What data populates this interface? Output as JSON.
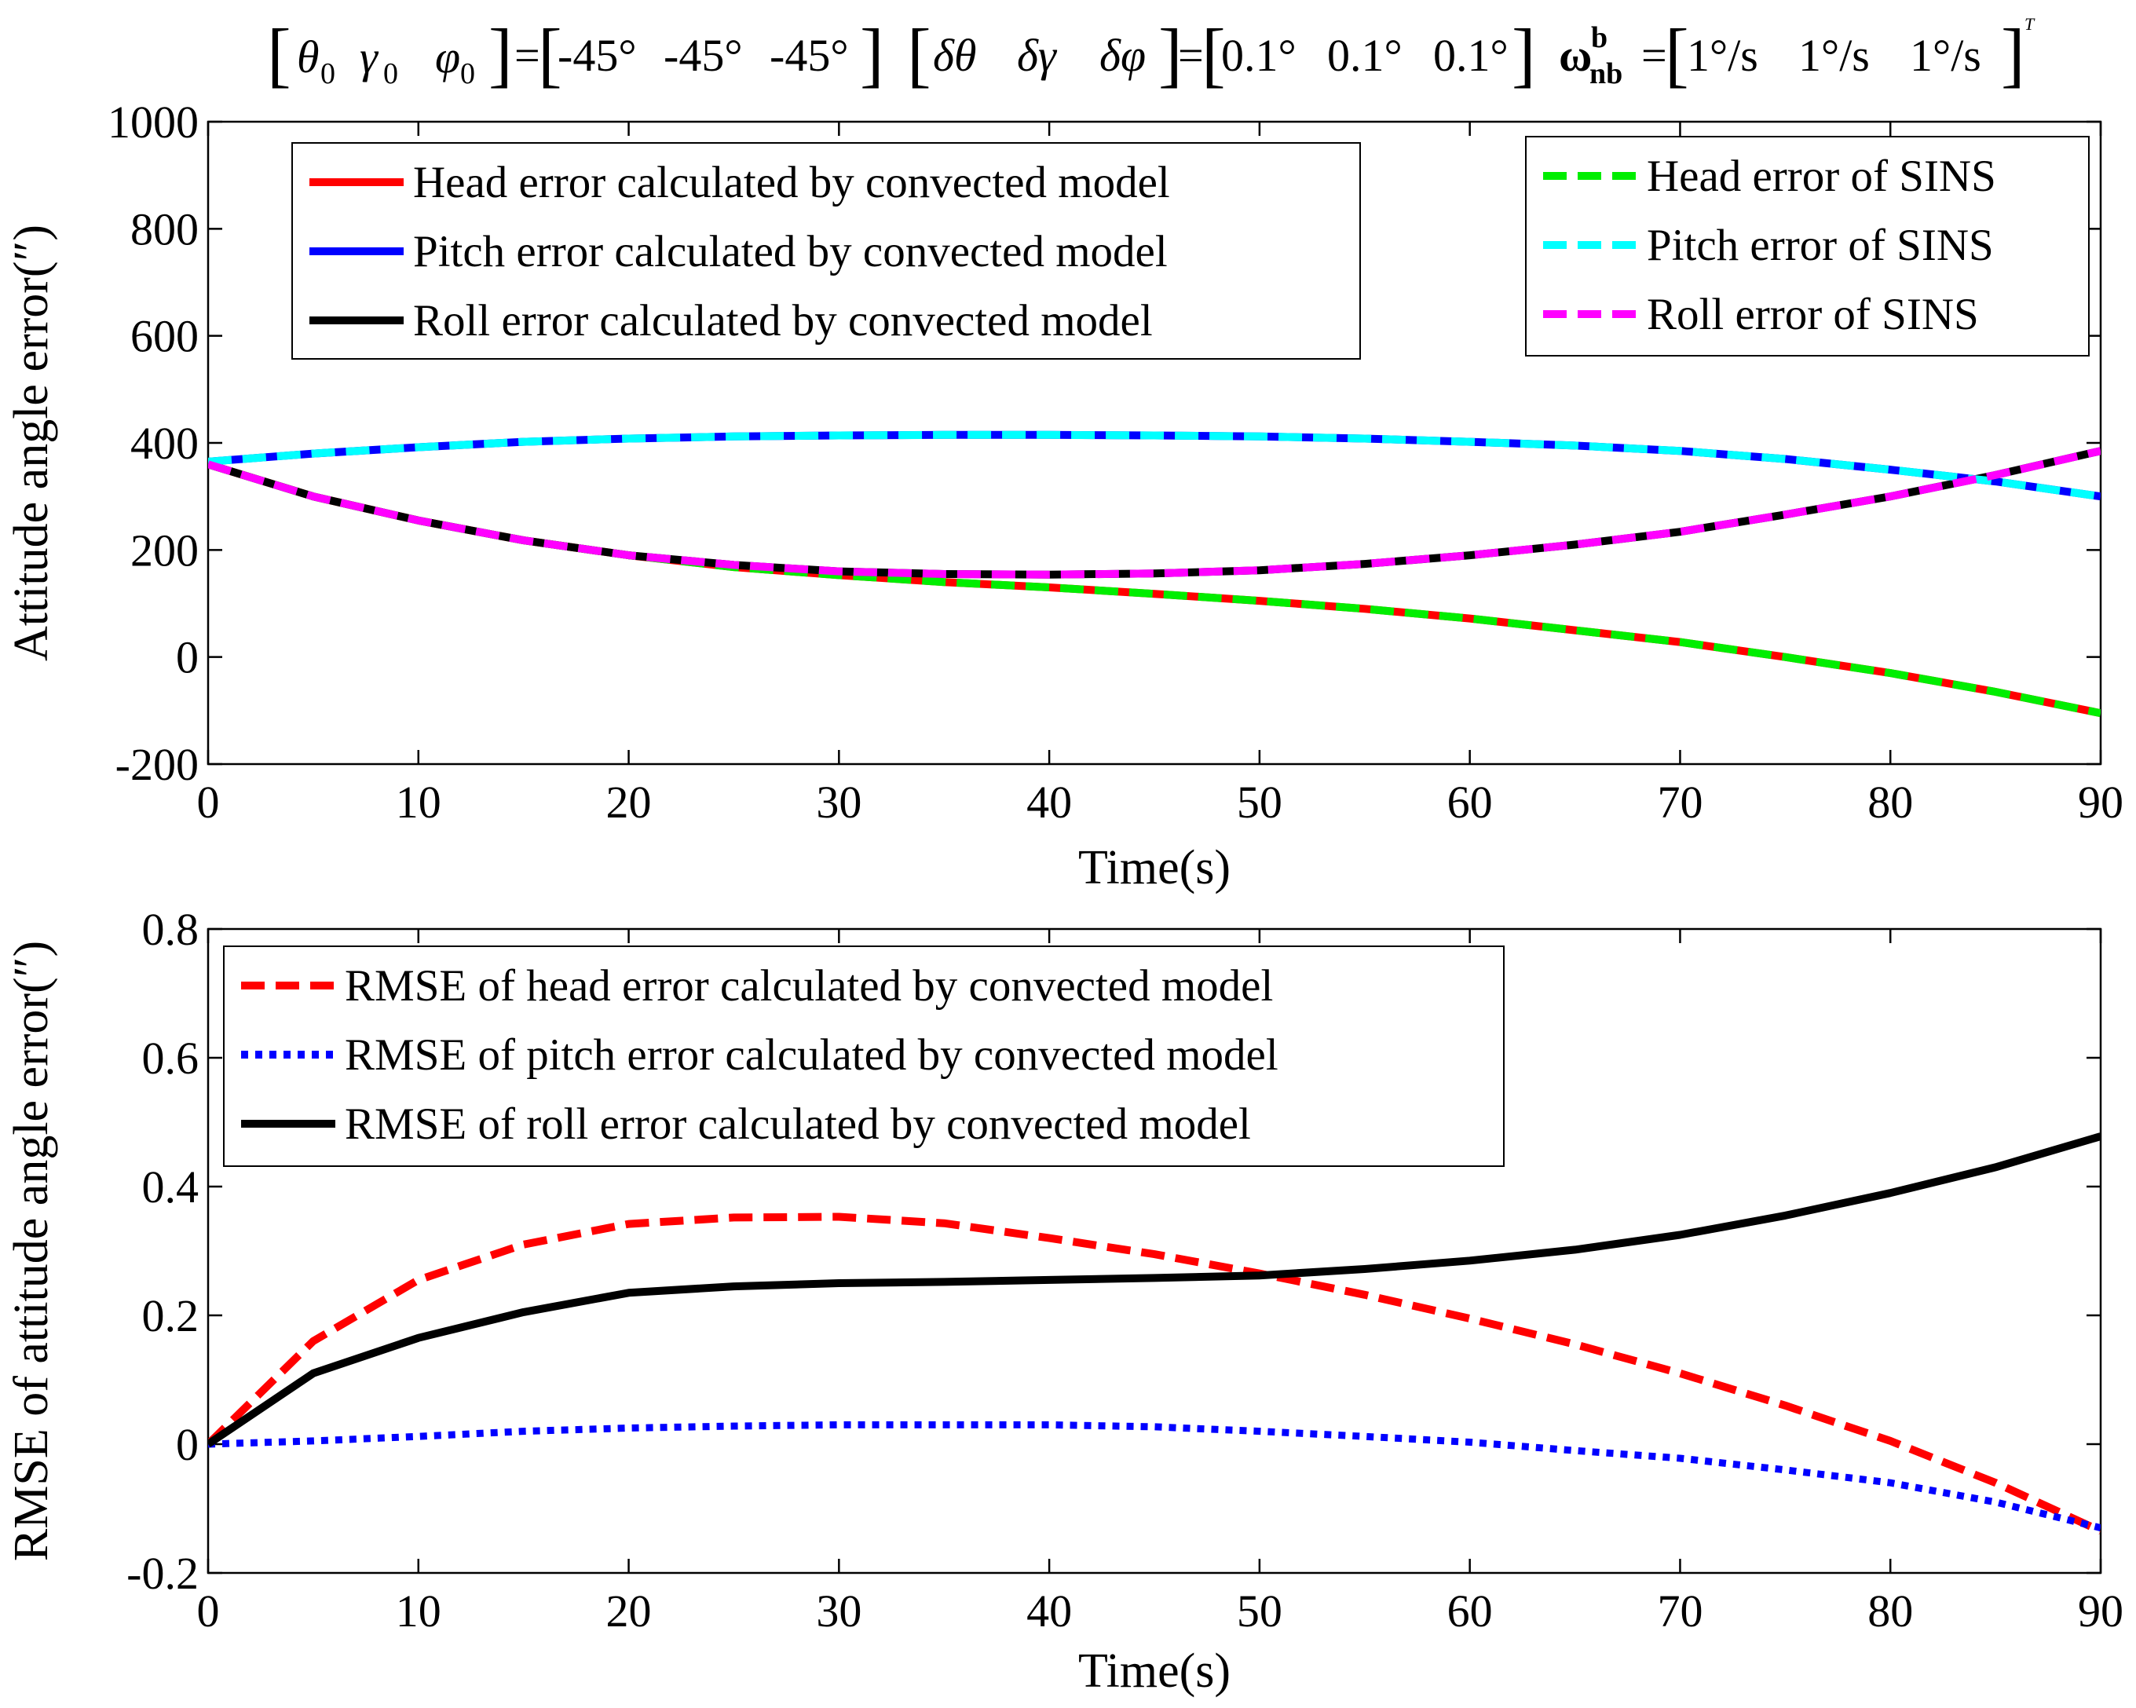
{
  "figure_title": {
    "init_att_lhs": [
      "θ",
      "0",
      "γ",
      "0",
      "φ",
      "0"
    ],
    "init_att_rhs": [
      "-45°",
      "-45°",
      "-45°"
    ],
    "delta_lhs": [
      "δθ",
      "δγ",
      "δφ"
    ],
    "delta_rhs": [
      "0.1°",
      "0.1°",
      "0.1°"
    ],
    "omega_symbol": "ω",
    "omega_sup": "b",
    "omega_sub": "nb",
    "omega_rhs": [
      "1°/s",
      "1°/s",
      "1°/s"
    ],
    "transpose": "T",
    "equals": "="
  },
  "chart_data": [
    {
      "type": "line",
      "title": "",
      "xlabel": "Time(s)",
      "ylabel": "Attitude angle error(″)",
      "xlim": [
        0,
        90
      ],
      "ylim": [
        -200,
        1000
      ],
      "xticks": [
        0,
        10,
        20,
        30,
        40,
        50,
        60,
        70,
        80,
        90
      ],
      "yticks": [
        -200,
        0,
        200,
        400,
        600,
        800,
        1000
      ],
      "x": [
        0,
        5,
        10,
        15,
        20,
        25,
        30,
        35,
        40,
        45,
        50,
        55,
        60,
        65,
        70,
        75,
        80,
        85,
        90
      ],
      "series": [
        {
          "name": "Head error calculated by convected model",
          "color": "#ff0000",
          "style": "solid",
          "legend": "left",
          "values": [
            360,
            300,
            255,
            218,
            190,
            168,
            153,
            140,
            130,
            118,
            105,
            90,
            72,
            50,
            28,
            0,
            -30,
            -65,
            -105
          ]
        },
        {
          "name": "Pitch error calculated by convected model",
          "color": "#0000ff",
          "style": "solid",
          "legend": "left",
          "values": [
            365,
            380,
            392,
            402,
            408,
            412,
            414,
            415,
            415,
            414,
            412,
            408,
            402,
            395,
            385,
            370,
            350,
            328,
            300
          ]
        },
        {
          "name": "Roll error calculated by convected model",
          "color": "#000000",
          "style": "solid",
          "legend": "left",
          "values": [
            360,
            300,
            255,
            218,
            190,
            172,
            160,
            155,
            154,
            156,
            162,
            174,
            190,
            210,
            234,
            266,
            300,
            340,
            385
          ]
        },
        {
          "name": "Head error of SINS",
          "color": "#00ee00",
          "style": "dashed",
          "legend": "right",
          "values": [
            360,
            300,
            255,
            218,
            190,
            168,
            153,
            140,
            130,
            118,
            105,
            90,
            72,
            50,
            28,
            0,
            -30,
            -65,
            -105
          ]
        },
        {
          "name": "Pitch error of SINS",
          "color": "#00ffff",
          "style": "dashed",
          "legend": "right",
          "values": [
            365,
            380,
            392,
            402,
            408,
            412,
            414,
            415,
            415,
            414,
            412,
            408,
            402,
            395,
            385,
            370,
            350,
            328,
            300
          ]
        },
        {
          "name": "Roll error of SINS",
          "color": "#ff00ff",
          "style": "dashed",
          "legend": "right",
          "values": [
            360,
            300,
            255,
            218,
            190,
            172,
            160,
            155,
            154,
            156,
            162,
            174,
            190,
            210,
            234,
            266,
            300,
            340,
            385
          ]
        }
      ]
    },
    {
      "type": "line",
      "title": "",
      "xlabel": "Time(s)",
      "ylabel": "RMSE of attitude angle error(″)",
      "xlim": [
        0,
        90
      ],
      "ylim": [
        -0.2,
        0.8
      ],
      "xticks": [
        0,
        10,
        20,
        30,
        40,
        50,
        60,
        70,
        80,
        90
      ],
      "yticks": [
        -0.2,
        0,
        0.2,
        0.4,
        0.6,
        0.8
      ],
      "x": [
        0,
        5,
        10,
        15,
        20,
        25,
        30,
        35,
        40,
        45,
        50,
        55,
        60,
        65,
        70,
        75,
        80,
        85,
        90
      ],
      "series": [
        {
          "name": "RMSE of head error calculated by convected model",
          "color": "#ff0000",
          "style": "dashed",
          "legend": "left",
          "values": [
            0,
            0.16,
            0.255,
            0.31,
            0.342,
            0.352,
            0.353,
            0.343,
            0.32,
            0.295,
            0.265,
            0.232,
            0.195,
            0.155,
            0.11,
            0.06,
            0.005,
            -0.06,
            -0.135
          ]
        },
        {
          "name": "RMSE of pitch error calculated by convected model",
          "color": "#0000ff",
          "style": "dotted",
          "legend": "left",
          "values": [
            0,
            0.005,
            0.012,
            0.02,
            0.025,
            0.028,
            0.03,
            0.03,
            0.03,
            0.027,
            0.02,
            0.012,
            0.003,
            -0.01,
            -0.022,
            -0.04,
            -0.06,
            -0.09,
            -0.13
          ]
        },
        {
          "name": "RMSE of roll error calculated by convected model",
          "color": "#000000",
          "style": "solid",
          "legend": "left",
          "values": [
            0,
            0.11,
            0.165,
            0.205,
            0.235,
            0.245,
            0.25,
            0.252,
            0.255,
            0.258,
            0.262,
            0.272,
            0.285,
            0.302,
            0.325,
            0.355,
            0.39,
            0.43,
            0.478
          ]
        }
      ]
    }
  ]
}
